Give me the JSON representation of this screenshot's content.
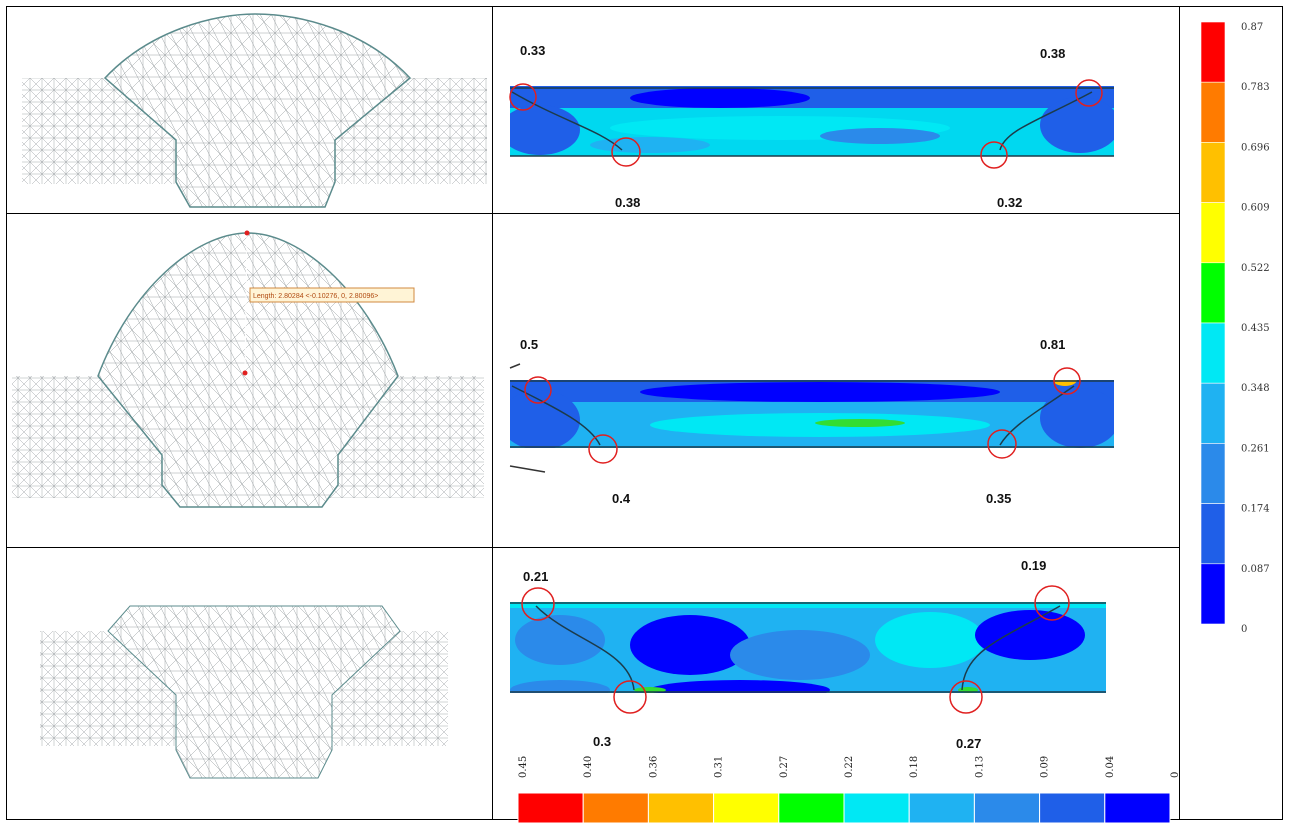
{
  "colors": {
    "scale": [
      "#0000ff",
      "#1f5fe8",
      "#2b8aea",
      "#1fb2f2",
      "#00e8f4",
      "#00ff00",
      "#ffff00",
      "#ffc000",
      "#ff7b00",
      "#ff0000"
    ],
    "mesh_line": "#9aa0a4",
    "outline": "#5b8b8c",
    "marker": "#e02020"
  },
  "panels": [
    {
      "row": "row-1",
      "labels": {
        "top_left": "0.33",
        "top_right": "0.38",
        "bottom_left": "0.38",
        "bottom_right": "0.32"
      }
    },
    {
      "row": "row-2",
      "measure_text": "Length: 2.80284 <-0.10276, 0, 2.80096>",
      "labels": {
        "top_left": "0.5",
        "top_right": "0.81",
        "bottom_left": "0.4",
        "bottom_right": "0.35"
      }
    },
    {
      "row": "row-3",
      "labels": {
        "top_left": "0.21",
        "top_right": "0.19",
        "bottom_left": "0.3",
        "bottom_right": "0.27"
      }
    }
  ],
  "right_legend": {
    "ticks": [
      "0.87",
      "0.783",
      "0.696",
      "0.609",
      "0.522",
      "0.435",
      "0.348",
      "0.261",
      "0.174",
      "0.087",
      "0"
    ]
  },
  "bottom_legend": {
    "ticks": [
      "0.45",
      "0.40",
      "0.36",
      "0.31",
      "0.27",
      "0.22",
      "0.18",
      "0.13",
      "0.09",
      "0.04",
      "0"
    ]
  }
}
